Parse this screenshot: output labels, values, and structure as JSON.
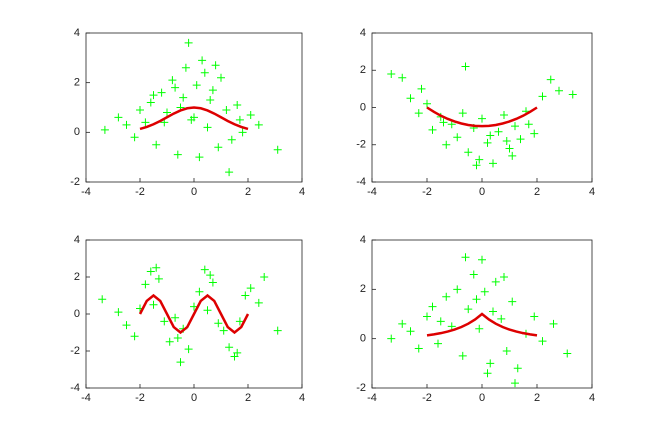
{
  "chart_data": [
    {
      "type": "scatter",
      "xlim": [
        -4,
        4
      ],
      "ylim": [
        -2,
        4
      ],
      "xticks": [
        -4,
        -2,
        0,
        2,
        4
      ],
      "yticks": [
        -2,
        0,
        2,
        4
      ],
      "series": [
        {
          "color": "#00ff00",
          "marker": "+",
          "x": [
            -3.3,
            -2.8,
            -2.5,
            -2.2,
            -2.0,
            -1.8,
            -1.6,
            -1.4,
            -1.2,
            -1.0,
            -0.8,
            -0.6,
            -0.4,
            -0.3,
            -0.1,
            -0.2,
            0.1,
            0.2,
            0.4,
            0.5,
            0.7,
            0.9,
            1.0,
            1.2,
            1.4,
            1.6,
            1.8,
            2.1,
            2.4,
            3.1,
            -0.5,
            0.3,
            0.6,
            -1.1,
            1.3,
            -0.7,
            0.0,
            0.8,
            -1.5,
            1.7
          ],
          "values": [
            0.1,
            0.6,
            0.3,
            -0.2,
            0.9,
            0.4,
            1.2,
            -0.5,
            1.6,
            0.8,
            2.1,
            -0.9,
            1.4,
            2.6,
            0.5,
            3.6,
            1.9,
            -1.0,
            2.4,
            0.2,
            1.7,
            -0.6,
            2.2,
            0.9,
            -0.3,
            1.1,
            0.0,
            0.7,
            0.3,
            -0.7,
            1.0,
            2.9,
            1.3,
            0.4,
            -1.6,
            1.8,
            0.6,
            2.7,
            1.5,
            0.5
          ]
        },
        {
          "color": "#dd0000",
          "style": "line",
          "x": [
            -2,
            -1.75,
            -1.5,
            -1.25,
            -1,
            -0.75,
            -0.5,
            -0.25,
            0,
            0.25,
            0.5,
            0.75,
            1,
            1.25,
            1.5,
            1.75,
            2
          ],
          "values": [
            0.135,
            0.216,
            0.325,
            0.458,
            0.607,
            0.755,
            0.882,
            0.969,
            1,
            0.969,
            0.882,
            0.755,
            0.607,
            0.458,
            0.325,
            0.216,
            0.135
          ]
        }
      ]
    },
    {
      "type": "scatter",
      "xlim": [
        -4,
        4
      ],
      "ylim": [
        -4,
        4
      ],
      "xticks": [
        -4,
        -2,
        0,
        2,
        4
      ],
      "yticks": [
        -4,
        -2,
        0,
        2,
        4
      ],
      "series": [
        {
          "color": "#00ff00",
          "marker": "+",
          "x": [
            -3.3,
            -2.9,
            -2.6,
            -2.3,
            -2.0,
            -1.8,
            -1.5,
            -1.3,
            -1.1,
            -0.9,
            -0.7,
            -0.5,
            -0.3,
            -0.1,
            0.0,
            0.2,
            0.4,
            0.6,
            0.8,
            1.0,
            1.2,
            1.4,
            1.6,
            1.9,
            2.2,
            2.5,
            2.8,
            3.3,
            -0.6,
            0.3,
            1.1,
            -1.4,
            0.9,
            -0.2,
            1.7,
            -2.2
          ],
          "values": [
            1.8,
            1.6,
            0.5,
            -0.3,
            0.2,
            -1.2,
            -0.5,
            -2.0,
            -0.9,
            -1.6,
            -0.3,
            -2.4,
            -1.1,
            -2.8,
            -0.6,
            -1.9,
            -3.0,
            -1.3,
            -0.4,
            -2.2,
            -1.0,
            -1.7,
            -0.2,
            -1.4,
            0.6,
            1.5,
            0.9,
            0.7,
            2.2,
            -1.5,
            -2.6,
            -0.8,
            -1.8,
            -3.1,
            -0.9,
            1.0
          ]
        },
        {
          "color": "#dd0000",
          "style": "line",
          "x": [
            -2,
            -1.75,
            -1.5,
            -1.25,
            -1,
            -0.75,
            -0.5,
            -0.25,
            0,
            0.25,
            0.5,
            0.75,
            1,
            1.25,
            1.5,
            1.75,
            2
          ],
          "values": [
            0,
            -0.234,
            -0.438,
            -0.609,
            -0.75,
            -0.859,
            -0.938,
            -0.984,
            -1,
            -0.984,
            -0.938,
            -0.859,
            -0.75,
            -0.609,
            -0.438,
            -0.234,
            0
          ]
        }
      ]
    },
    {
      "type": "scatter",
      "xlim": [
        -4,
        4
      ],
      "ylim": [
        -4,
        4
      ],
      "xticks": [
        -4,
        -2,
        0,
        2,
        4
      ],
      "yticks": [
        -4,
        -2,
        0,
        2,
        4
      ],
      "series": [
        {
          "color": "#00ff00",
          "marker": "+",
          "x": [
            -3.4,
            -2.8,
            -2.5,
            -2.2,
            -2.0,
            -1.8,
            -1.6,
            -1.5,
            -1.3,
            -1.1,
            -0.9,
            -0.7,
            -0.5,
            -0.4,
            -0.2,
            0.0,
            0.2,
            0.4,
            0.5,
            0.7,
            0.9,
            1.1,
            1.3,
            1.5,
            1.7,
            1.9,
            2.1,
            2.4,
            2.6,
            3.1,
            -1.4,
            0.6,
            1.6,
            -0.6
          ],
          "values": [
            0.8,
            0.1,
            -0.6,
            -1.2,
            0.3,
            1.6,
            2.3,
            0.5,
            1.9,
            -0.4,
            -1.5,
            -0.2,
            -2.6,
            -0.8,
            -1.9,
            0.4,
            1.2,
            2.4,
            0.2,
            1.7,
            -0.5,
            -0.9,
            -1.8,
            -2.3,
            -0.4,
            1.0,
            1.4,
            0.6,
            2.0,
            -0.9,
            2.5,
            2.1,
            -2.1,
            -1.3
          ]
        },
        {
          "color": "#dd0000",
          "style": "line",
          "x": [
            -2,
            -1.75,
            -1.5,
            -1.25,
            -1,
            -0.75,
            -0.5,
            -0.25,
            0,
            0.25,
            0.5,
            0.75,
            1,
            1.25,
            1.5,
            1.75,
            2
          ],
          "values": [
            0,
            0.707,
            1,
            0.707,
            0,
            -0.707,
            -1,
            -0.707,
            0,
            0.707,
            1,
            0.707,
            0,
            -0.707,
            -1,
            -0.707,
            0
          ]
        }
      ]
    },
    {
      "type": "scatter",
      "xlim": [
        -4,
        4
      ],
      "ylim": [
        -2,
        4
      ],
      "xticks": [
        -4,
        -2,
        0,
        2,
        4
      ],
      "yticks": [
        -2,
        0,
        2,
        4
      ],
      "series": [
        {
          "color": "#00ff00",
          "marker": "+",
          "x": [
            -3.3,
            -2.9,
            -2.6,
            -2.3,
            -2.0,
            -1.8,
            -1.6,
            -1.3,
            -1.1,
            -0.9,
            -0.7,
            -0.5,
            -0.3,
            -0.1,
            0.0,
            0.1,
            0.3,
            0.5,
            0.7,
            0.9,
            1.1,
            1.3,
            1.6,
            1.9,
            2.2,
            2.6,
            3.1,
            -0.6,
            0.4,
            0.2,
            1.2,
            -1.5,
            0.8,
            -0.2
          ],
          "values": [
            0.0,
            0.6,
            0.3,
            -0.4,
            0.9,
            1.3,
            -0.2,
            1.7,
            0.5,
            2.0,
            -0.7,
            1.2,
            2.6,
            0.4,
            3.2,
            1.9,
            -1.0,
            2.3,
            0.8,
            -0.5,
            1.5,
            -1.2,
            0.2,
            0.9,
            -0.1,
            0.6,
            -0.6,
            3.3,
            1.1,
            -1.4,
            -1.8,
            0.7,
            2.5,
            1.6
          ]
        },
        {
          "color": "#dd0000",
          "style": "line",
          "x": [
            -2,
            -1.75,
            -1.5,
            -1.25,
            -1,
            -0.75,
            -0.5,
            -0.25,
            0,
            0.25,
            0.5,
            0.75,
            1,
            1.25,
            1.5,
            1.75,
            2
          ],
          "values": [
            0.135,
            0.174,
            0.223,
            0.287,
            0.368,
            0.472,
            0.607,
            0.779,
            1,
            0.779,
            0.607,
            0.472,
            0.368,
            0.287,
            0.223,
            0.174,
            0.135
          ]
        }
      ]
    }
  ]
}
